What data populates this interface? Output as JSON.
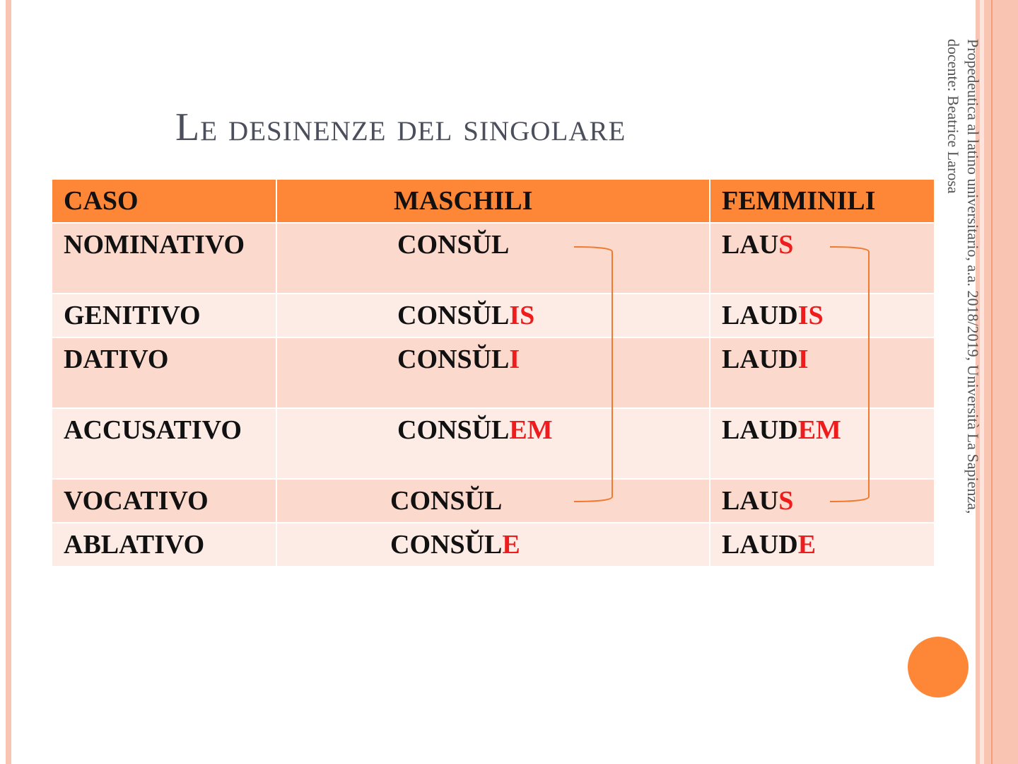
{
  "title": "Le desinenze del singolare",
  "side_note": {
    "line1": "Propedeutica al latino universitario, a.a. 2018/2019, Università La Sapienza,",
    "line2": "docente: Beatrice Larosa"
  },
  "table": {
    "headers": [
      "CASO",
      "MASCHILI",
      "FEMMINILI"
    ],
    "rows": [
      {
        "caso": "NOMINATIVO",
        "m_stem": "CONSŬL",
        "m_end": "",
        "f_stem": "LAU",
        "f_end": "S"
      },
      {
        "caso": "GENITIVO",
        "m_stem": "CONSŬL",
        "m_end": "IS",
        "f_stem": "LAUD",
        "f_end": "IS"
      },
      {
        "caso": "DATIVO",
        "m_stem": "CONSŬL",
        "m_end": "I",
        "f_stem": "LAUD",
        "f_end": "I"
      },
      {
        "caso": "ACCUSATIVO",
        "m_stem": "CONSŬL",
        "m_end": "EM",
        "f_stem": "LAUD",
        "f_end": "EM"
      },
      {
        "caso": "VOCATIVO",
        "m_stem": "CONSŬL",
        "m_end": "",
        "f_stem": "LAU",
        "f_end": "S"
      },
      {
        "caso": "ABLATIVO",
        "m_stem": "CONSŬL",
        "m_end": "E",
        "f_stem": "LAUD",
        "f_end": "E"
      }
    ]
  },
  "colors": {
    "accent": "#fd8637",
    "ending": "#ee1c1c",
    "row_dark": "#fcd9cd",
    "row_light": "#fdece6"
  }
}
